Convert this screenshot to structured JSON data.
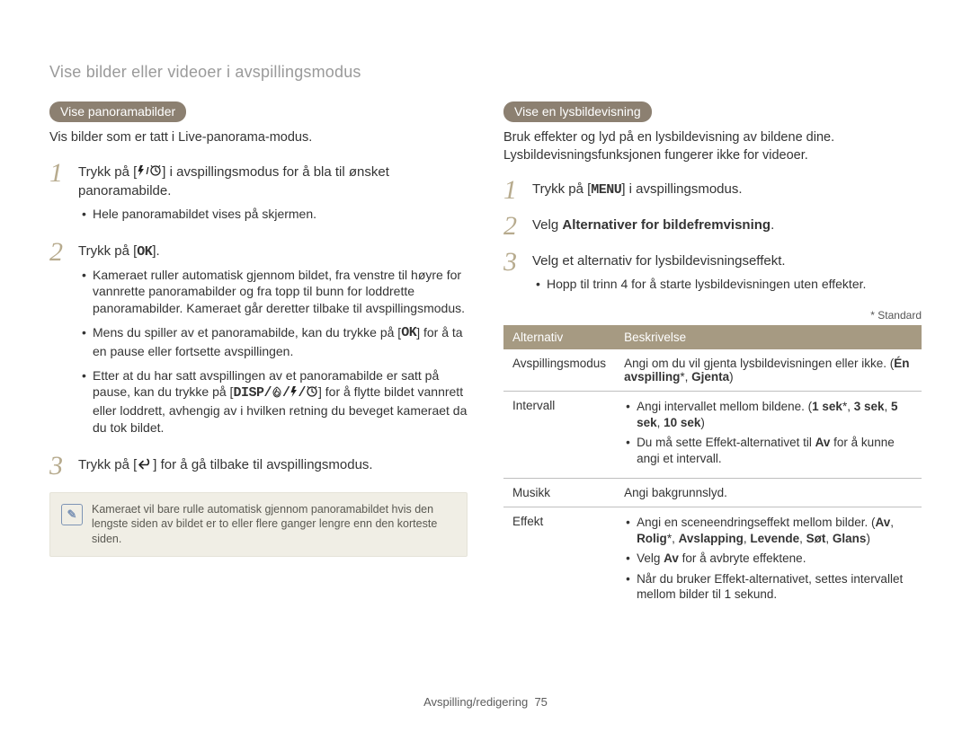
{
  "pageTitle": "Vise bilder eller videoer i avspillingsmodus",
  "footer": {
    "section": "Avspilling/redigering",
    "page": "75"
  },
  "colors": {
    "pill_bg": "#8c8071",
    "pill_fg": "#ffffff",
    "step_num": "#b7ab8e",
    "table_header_bg": "#a69a82",
    "table_header_fg": "#ffffff",
    "note_bg": "#f0eee5",
    "note_border": "#e5e3d8",
    "note_icon": "#7d94b5"
  },
  "left": {
    "pill": "Vise panoramabilder",
    "lead": "Vis bilder som er tatt i Live-panorama-modus.",
    "step1_pre": "Trykk på [",
    "step1_post": "] i avspillingsmodus for å bla til ønsket panoramabilde.",
    "step1_sub": "Hele panoramabildet vises på skjermen.",
    "step2_pre": "Trykk på [",
    "step2_post": "].",
    "step2_b1": "Kameraet ruller automatisk gjennom bildet, fra venstre til høyre for vannrette panoramabilder og fra topp til bunn for loddrette panoramabilder. Kameraet går deretter tilbake til avspillingsmodus.",
    "step2_b2_pre": "Mens du spiller av et panoramabilde, kan du trykke på [",
    "step2_b2_post": "] for å ta en pause eller fortsette avspillingen.",
    "step2_b3_pre": "Etter at du har satt avspillingen av et panoramabilde er satt på pause, kan du trykke på [",
    "step2_b3_post": "] for å flytte bildet vannrett eller loddrett, avhengig av i hvilken retning du beveget kameraet da du tok bildet.",
    "step3_pre": "Trykk på [",
    "step3_post": "] for å gå tilbake til avspillingsmodus.",
    "note": "Kameraet vil bare rulle automatisk gjennom panoramabildet hvis den lengste siden av bildet er to eller flere ganger lengre enn den korteste siden."
  },
  "right": {
    "pill": "Vise en lysbildevisning",
    "lead": "Bruk effekter og lyd på en lysbildevisning av bildene dine. Lysbildevisningsfunksjonen fungerer ikke for videoer.",
    "step1_pre": "Trykk på [",
    "step1_post": "] i avspillingsmodus.",
    "step2_pre": "Velg ",
    "step2_bold": "Alternativer for bildefremvisning",
    "step2_post": ".",
    "step3_text": "Velg et alternativ for lysbildevisningseffekt.",
    "step3_sub": "Hopp til trinn 4 for å starte lysbildevisningen uten effekter.",
    "standard_label": "* Standard",
    "table": {
      "header_opt": "Alternativ",
      "header_desc": "Beskrivelse",
      "rows": [
        {
          "name": "Avspillingsmodus",
          "desc_html": "Angi om du vil gjenta lysbildevisningen eller ikke. (<b>Én avspilling</b>*, <b>Gjenta</b>)"
        },
        {
          "name": "Intervall",
          "list": [
            "Angi intervallet mellom bildene. (<b>1 sek</b>*, <b>3 sek</b>, <b>5 sek</b>, <b>10 sek</b>)",
            "Du må sette Effekt-alternativet til <b>Av</b> for å kunne angi et intervall."
          ]
        },
        {
          "name": "Musikk",
          "desc_html": "Angi bakgrunnslyd."
        },
        {
          "name": "Effekt",
          "list": [
            "Angi en sceneendringseffekt mellom bilder. (<b>Av</b>, <b>Rolig</b>*, <b>Avslapping</b>, <b>Levende</b>, <b>Søt</b>, <b>Glans</b>)",
            "Velg <b>Av</b> for å avbryte effektene.",
            "Når du bruker Effekt-alternativet, settes intervallet mellom bilder til 1 sekund."
          ]
        }
      ]
    }
  },
  "icons": {
    "ok": "OK",
    "menu": "MENU",
    "disp": "DISP"
  }
}
